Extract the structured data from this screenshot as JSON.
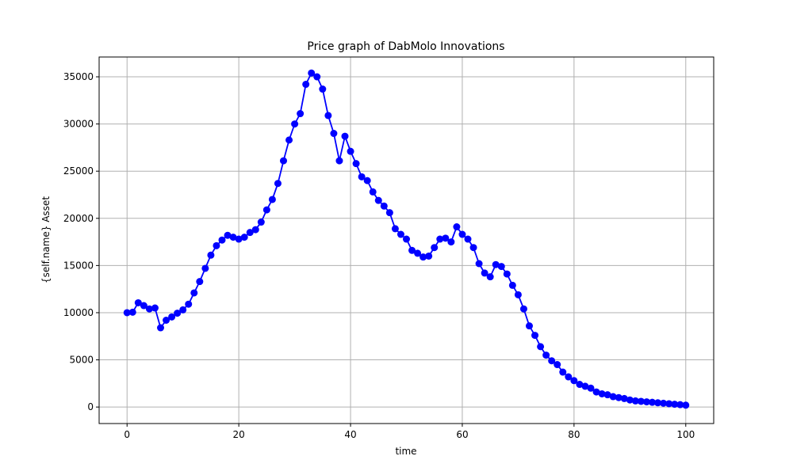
{
  "chart_data": {
    "type": "line",
    "title": "Price graph of DabMolo Innovations",
    "xlabel": "time",
    "ylabel": "{self.name} Asset",
    "xlim": [
      -5,
      105
    ],
    "ylim": [
      -1750,
      37100
    ],
    "xticks": [
      0,
      20,
      40,
      60,
      80,
      100
    ],
    "yticks": [
      0,
      5000,
      10000,
      15000,
      20000,
      25000,
      30000,
      35000
    ],
    "grid": true,
    "color": "#0000ff",
    "marker": "circle",
    "x": [
      0,
      1,
      2,
      3,
      4,
      5,
      6,
      7,
      8,
      9,
      10,
      11,
      12,
      13,
      14,
      15,
      16,
      17,
      18,
      19,
      20,
      21,
      22,
      23,
      24,
      25,
      26,
      27,
      28,
      29,
      30,
      31,
      32,
      33,
      34,
      35,
      36,
      37,
      38,
      39,
      40,
      41,
      42,
      43,
      44,
      45,
      46,
      47,
      48,
      49,
      50,
      51,
      52,
      53,
      54,
      55,
      56,
      57,
      58,
      59,
      60,
      61,
      62,
      63,
      64,
      65,
      66,
      67,
      68,
      69,
      70,
      71,
      72,
      73,
      74,
      75,
      76,
      77,
      78,
      79,
      80,
      81,
      82,
      83,
      84,
      85,
      86,
      87,
      88,
      89,
      90,
      91,
      92,
      93,
      94,
      95,
      96,
      97,
      98,
      99,
      100
    ],
    "y": [
      10000,
      10050,
      11050,
      10750,
      10400,
      10500,
      8400,
      9200,
      9550,
      9950,
      10300,
      10900,
      12100,
      13300,
      14700,
      16100,
      17100,
      17700,
      18200,
      18000,
      17800,
      18000,
      18500,
      18800,
      19600,
      20900,
      22000,
      23700,
      26100,
      28300,
      30000,
      31100,
      34200,
      35400,
      35000,
      33700,
      30900,
      29000,
      26100,
      28700,
      27100,
      25800,
      24400,
      24000,
      22800,
      21900,
      21300,
      20600,
      18900,
      18300,
      17800,
      16600,
      16300,
      15900,
      16000,
      16900,
      17800,
      17900,
      17500,
      19100,
      18300,
      17800,
      16900,
      15200,
      14200,
      13800,
      15100,
      14900,
      14100,
      12900,
      11900,
      10400,
      8600,
      7600,
      6400,
      5500,
      4900,
      4500,
      3700,
      3200,
      2800,
      2400,
      2200,
      2000,
      1600,
      1400,
      1300,
      1100,
      1000,
      900,
      750,
      650,
      600,
      550,
      500,
      450,
      400,
      350,
      300,
      250,
      200
    ]
  }
}
